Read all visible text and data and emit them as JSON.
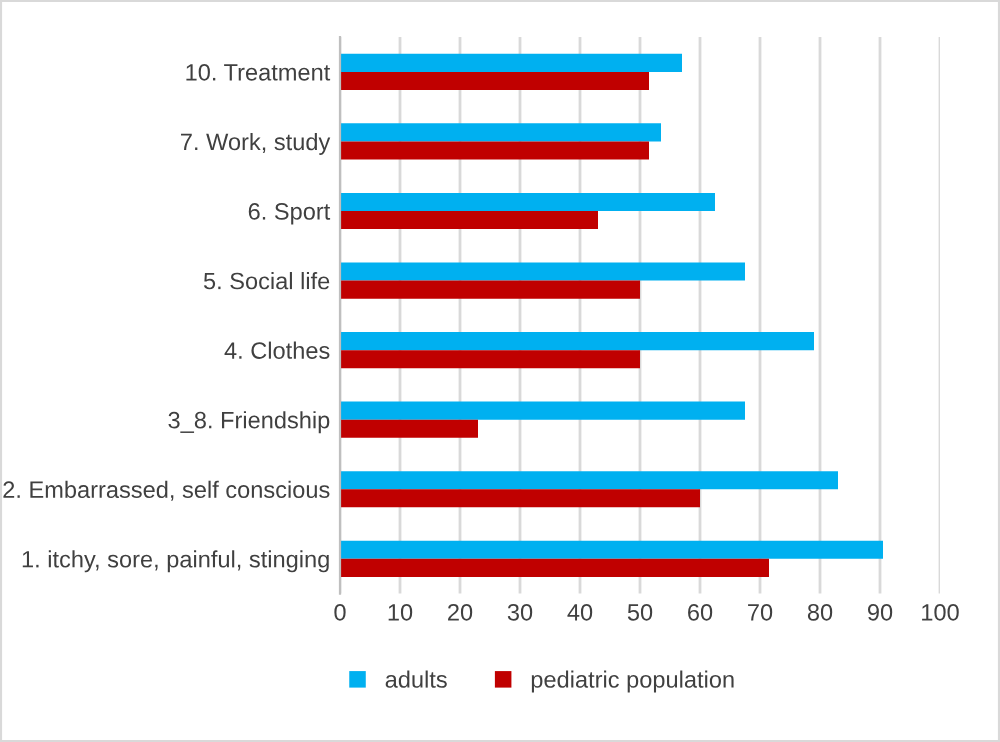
{
  "chart_data": {
    "type": "bar",
    "orientation": "horizontal",
    "categories": [
      "10. Treatment",
      "7. Work, study",
      "6. Sport",
      "5. Social life",
      "4. Clothes",
      "3_8. Friendship",
      "2. Embarrassed, self conscious",
      "1. itchy, sore, painful, stinging"
    ],
    "series": [
      {
        "name": "adults",
        "color": "#00b0f0",
        "values": [
          57,
          53.5,
          62.5,
          67.5,
          79,
          67.5,
          83,
          90.5
        ]
      },
      {
        "name": "pediatric population",
        "color": "#c00000",
        "values": [
          51.5,
          51.5,
          43,
          50,
          50,
          23,
          60,
          71.5
        ]
      }
    ],
    "xlim": [
      0,
      100
    ],
    "xticks": [
      0,
      10,
      20,
      30,
      40,
      50,
      60,
      70,
      80,
      90,
      100
    ],
    "grid": "x",
    "legend": "bottom left"
  }
}
